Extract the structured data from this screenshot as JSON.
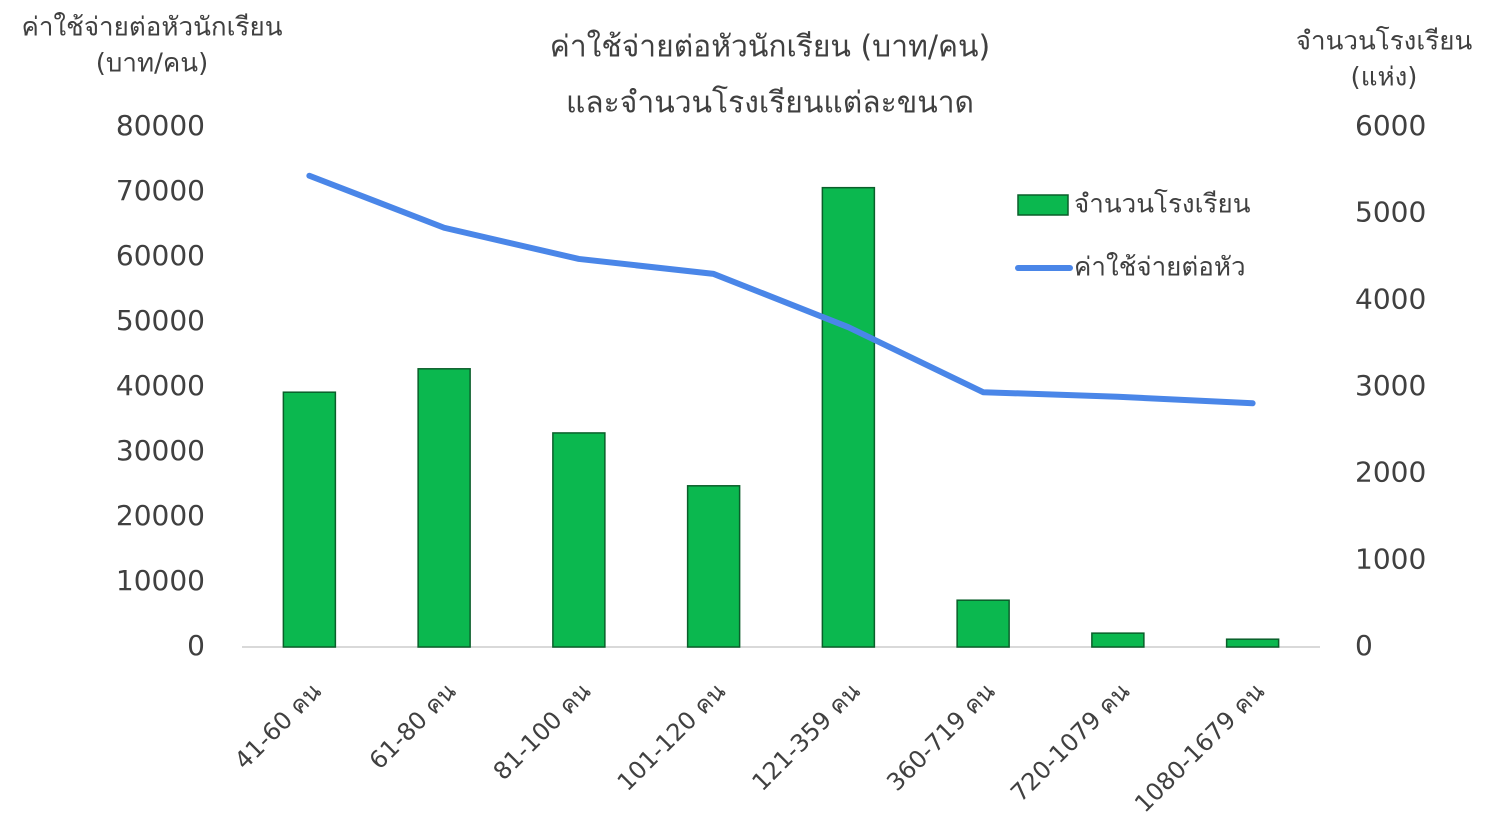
{
  "chart_data": {
    "type": "bar",
    "title": [
      "ค่าใช้จ่ายต่อหัวนักเรียน (บาท/คน)",
      "และจำนวนโรงเรียนแต่ละขนาด"
    ],
    "ylabel": [
      "ค่าใช้จ่ายต่อหัวนักเรียน",
      "(บาท/คน)"
    ],
    "y2label": [
      "จำนวนโรงเรียน",
      "(แห่ง)"
    ],
    "categories": [
      "41-60 คน",
      "61-80 คน",
      "81-100 คน",
      "101-120 คน",
      "121-359 คน",
      "360-719 คน",
      "720-1079 คน",
      "1080-1679 คน"
    ],
    "series": [
      {
        "name": "จำนวนโรงเรียน",
        "type": "bar",
        "axis": "y2",
        "color": "#0bb84f",
        "values": [
          2940,
          3210,
          2470,
          1860,
          5300,
          540,
          160,
          90
        ]
      },
      {
        "name": "ค่าใช้จ่ายต่อหัว",
        "type": "line",
        "axis": "y",
        "color": "#4a86e8",
        "values": [
          72500,
          64500,
          59700,
          57400,
          49200,
          39200,
          38500,
          37500
        ]
      }
    ],
    "ylim": [
      0,
      80000
    ],
    "yticks": [
      0,
      10000,
      20000,
      30000,
      40000,
      50000,
      60000,
      70000,
      80000
    ],
    "y2lim": [
      0,
      6000
    ],
    "y2ticks": [
      0,
      1000,
      2000,
      3000,
      4000,
      5000,
      6000
    ],
    "grid": false
  }
}
